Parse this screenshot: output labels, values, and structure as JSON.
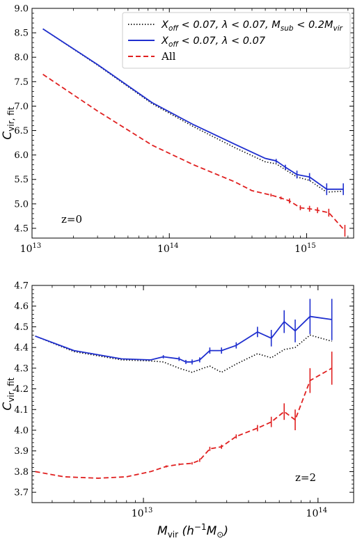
{
  "chart_data": [
    {
      "type": "line",
      "xscale": "log",
      "xlim": [
        10000000000000.0,
        2200000000000000.0
      ],
      "ylim": [
        4.3,
        9.0
      ],
      "xticks": [
        10000000000000.0,
        100000000000000.0,
        1000000000000000.0
      ],
      "xtick_labels": [
        {
          "base": "10",
          "exp": "13"
        },
        {
          "base": "10",
          "exp": "14"
        },
        {
          "base": "10",
          "exp": "15"
        }
      ],
      "yticks": [
        4.5,
        5.0,
        5.5,
        6.0,
        6.5,
        7.0,
        7.5,
        8.0,
        8.5,
        9.0
      ],
      "ytick_labels": [
        "4.5",
        "5.0",
        "5.5",
        "6.0",
        "6.5",
        "7.0",
        "7.5",
        "8.0",
        "8.5",
        "9.0"
      ],
      "ylabel": {
        "main": "C",
        "sub": "vir, fit"
      },
      "xlabel": null,
      "annotation": "z=0",
      "legend_position": "top-right",
      "legend": [
        {
          "label": "X_off < 0.07, λ < 0.07, M_sub < 0.2M_vir",
          "parts": [
            {
              "t": "X",
              "sub": "off"
            },
            {
              "t": " < 0.07, λ < 0.07, M"
            },
            {
              "t": "",
              "sub": "sub"
            },
            {
              "t": " < 0.2M"
            },
            {
              "t": "",
              "sub": "vir"
            }
          ],
          "color": "#000000",
          "style": "dotted"
        },
        {
          "label": "X_off < 0.07, λ < 0.07",
          "parts": [
            {
              "t": "X",
              "sub": "off"
            },
            {
              "t": " < 0.07, λ < 0.07"
            }
          ],
          "color": "#1f2fcf",
          "style": "solid"
        },
        {
          "label": "All",
          "parts": [
            {
              "t": "All",
              "roman": true
            }
          ],
          "color": "#e02020",
          "style": "dashed"
        }
      ],
      "series": [
        {
          "name": "X_off < 0.07, λ < 0.07, M_sub < 0.2M_vir",
          "color": "#000000",
          "style": "dotted",
          "x": [
            12000000000000.0,
            30000000000000.0,
            75000000000000.0,
            150000000000000.0,
            300000000000000.0,
            500000000000000.0,
            600000000000000.0,
            700000000000000.0,
            850000000000000.0,
            1050000000000000.0,
            1400000000000000.0,
            1850000000000000.0
          ],
          "y": [
            8.58,
            7.84,
            7.05,
            6.58,
            6.15,
            5.86,
            5.82,
            5.7,
            5.55,
            5.48,
            5.24,
            5.26
          ]
        },
        {
          "name": "X_off < 0.07, λ < 0.07",
          "color": "#1f2fcf",
          "style": "solid",
          "x": [
            12000000000000.0,
            30000000000000.0,
            75000000000000.0,
            150000000000000.0,
            300000000000000.0,
            500000000000000.0,
            600000000000000.0,
            700000000000000.0,
            850000000000000.0,
            1050000000000000.0,
            1400000000000000.0,
            1850000000000000.0
          ],
          "y": [
            8.58,
            7.85,
            7.07,
            6.62,
            6.22,
            5.93,
            5.88,
            5.75,
            5.6,
            5.55,
            5.3,
            5.3
          ],
          "err_x": [
            600000000000000.0,
            700000000000000.0,
            850000000000000.0,
            1050000000000000.0,
            1400000000000000.0,
            1850000000000000.0
          ],
          "err_y": [
            0.04,
            0.05,
            0.08,
            0.08,
            0.12,
            0.12
          ]
        },
        {
          "name": "All",
          "color": "#e02020",
          "style": "dashed",
          "x": [
            12000000000000.0,
            30000000000000.0,
            75000000000000.0,
            150000000000000.0,
            300000000000000.0,
            400000000000000.0,
            550000000000000.0,
            650000000000000.0,
            750000000000000.0,
            900000000000000.0,
            1050000000000000.0,
            1200000000000000.0,
            1450000000000000.0,
            1900000000000000.0
          ],
          "y": [
            7.65,
            6.9,
            6.2,
            5.8,
            5.45,
            5.27,
            5.18,
            5.12,
            5.06,
            4.92,
            4.9,
            4.87,
            4.82,
            4.45
          ],
          "err_x": [
            550000000000000.0,
            650000000000000.0,
            750000000000000.0,
            900000000000000.0,
            1050000000000000.0,
            1200000000000000.0,
            1450000000000000.0,
            1900000000000000.0
          ],
          "err_y": [
            0.03,
            0.03,
            0.05,
            0.05,
            0.06,
            0.06,
            0.08,
            0.12
          ]
        }
      ]
    },
    {
      "type": "line",
      "xscale": "log",
      "xlim": [
        2300000000000.0,
        160000000000000.0
      ],
      "ylim": [
        3.65,
        4.7
      ],
      "xticks": [
        10000000000000.0,
        100000000000000.0
      ],
      "xtick_labels": [
        {
          "base": "10",
          "exp": "13"
        },
        {
          "base": "10",
          "exp": "14"
        }
      ],
      "yticks": [
        3.7,
        3.8,
        3.9,
        4.0,
        4.1,
        4.2,
        4.3,
        4.4,
        4.5,
        4.6,
        4.7
      ],
      "ytick_labels": [
        "3.7",
        "3.8",
        "3.9",
        "4.0",
        "4.1",
        "4.2",
        "4.3",
        "4.4",
        "4.5",
        "4.6",
        "4.7"
      ],
      "ylabel": {
        "main": "C",
        "sub": "vir, fit"
      },
      "xlabel": {
        "main": "M",
        "sub": "vir",
        "rest": " (h",
        "sup": "−1",
        "rest2": "M",
        "sub2": "⊙",
        "close": ")"
      },
      "annotation": "z=2",
      "series": [
        {
          "name": "X_off < 0.07, λ < 0.07, M_sub < 0.2M_vir",
          "color": "#000000",
          "style": "dotted",
          "x": [
            2400000000000.0,
            4000000000000.0,
            7500000000000.0,
            11000000000000.0,
            13000000000000.0,
            16000000000000.0,
            19000000000000.0,
            22000000000000.0,
            24000000000000.0,
            28000000000000.0,
            34000000000000.0,
            45000000000000.0,
            54000000000000.0,
            64000000000000.0,
            74000000000000.0,
            90000000000000.0,
            120000000000000.0
          ],
          "y": [
            4.455,
            4.38,
            4.34,
            4.335,
            4.33,
            4.3,
            4.28,
            4.3,
            4.31,
            4.28,
            4.32,
            4.37,
            4.35,
            4.39,
            4.4,
            4.46,
            4.43
          ]
        },
        {
          "name": "X_off < 0.07, λ < 0.07",
          "color": "#1f2fcf",
          "style": "solid",
          "x": [
            2400000000000.0,
            4000000000000.0,
            7500000000000.0,
            11000000000000.0,
            13000000000000.0,
            16000000000000.0,
            17500000000000.0,
            19000000000000.0,
            21000000000000.0,
            24000000000000.0,
            28000000000000.0,
            34000000000000.0,
            45000000000000.0,
            54000000000000.0,
            64000000000000.0,
            74000000000000.0,
            90000000000000.0,
            120000000000000.0
          ],
          "y": [
            4.455,
            4.385,
            4.345,
            4.34,
            4.355,
            4.345,
            4.33,
            4.33,
            4.34,
            4.385,
            4.385,
            4.41,
            4.475,
            4.445,
            4.525,
            4.48,
            4.55,
            4.535
          ],
          "err_x": [
            13000000000000.0,
            16000000000000.0,
            17500000000000.0,
            19000000000000.0,
            21000000000000.0,
            24000000000000.0,
            28000000000000.0,
            34000000000000.0,
            45000000000000.0,
            54000000000000.0,
            64000000000000.0,
            74000000000000.0,
            90000000000000.0,
            120000000000000.0
          ],
          "err_y": [
            0.008,
            0.01,
            0.01,
            0.012,
            0.012,
            0.015,
            0.015,
            0.015,
            0.025,
            0.04,
            0.055,
            0.055,
            0.085,
            0.1
          ]
        },
        {
          "name": "All",
          "color": "#e02020",
          "style": "dashed",
          "x": [
            2400000000000.0,
            3500000000000.0,
            5500000000000.0,
            8000000000000.0,
            11000000000000.0,
            13500000000000.0,
            16000000000000.0,
            19000000000000.0,
            21000000000000.0,
            24000000000000.0,
            28000000000000.0,
            34000000000000.0,
            45000000000000.0,
            54000000000000.0,
            64000000000000.0,
            74000000000000.0,
            90000000000000.0,
            120000000000000.0
          ],
          "y": [
            3.8,
            3.775,
            3.768,
            3.775,
            3.8,
            3.825,
            3.835,
            3.84,
            3.855,
            3.91,
            3.92,
            3.97,
            4.01,
            4.04,
            4.09,
            4.05,
            4.24,
            4.3
          ],
          "err_x": [
            13500000000000.0,
            16000000000000.0,
            19000000000000.0,
            21000000000000.0,
            24000000000000.0,
            28000000000000.0,
            34000000000000.0,
            45000000000000.0,
            54000000000000.0,
            64000000000000.0,
            74000000000000.0,
            90000000000000.0,
            120000000000000.0
          ],
          "err_y": [
            0.005,
            0.005,
            0.006,
            0.008,
            0.01,
            0.01,
            0.01,
            0.015,
            0.025,
            0.04,
            0.05,
            0.06,
            0.08
          ]
        }
      ]
    }
  ]
}
